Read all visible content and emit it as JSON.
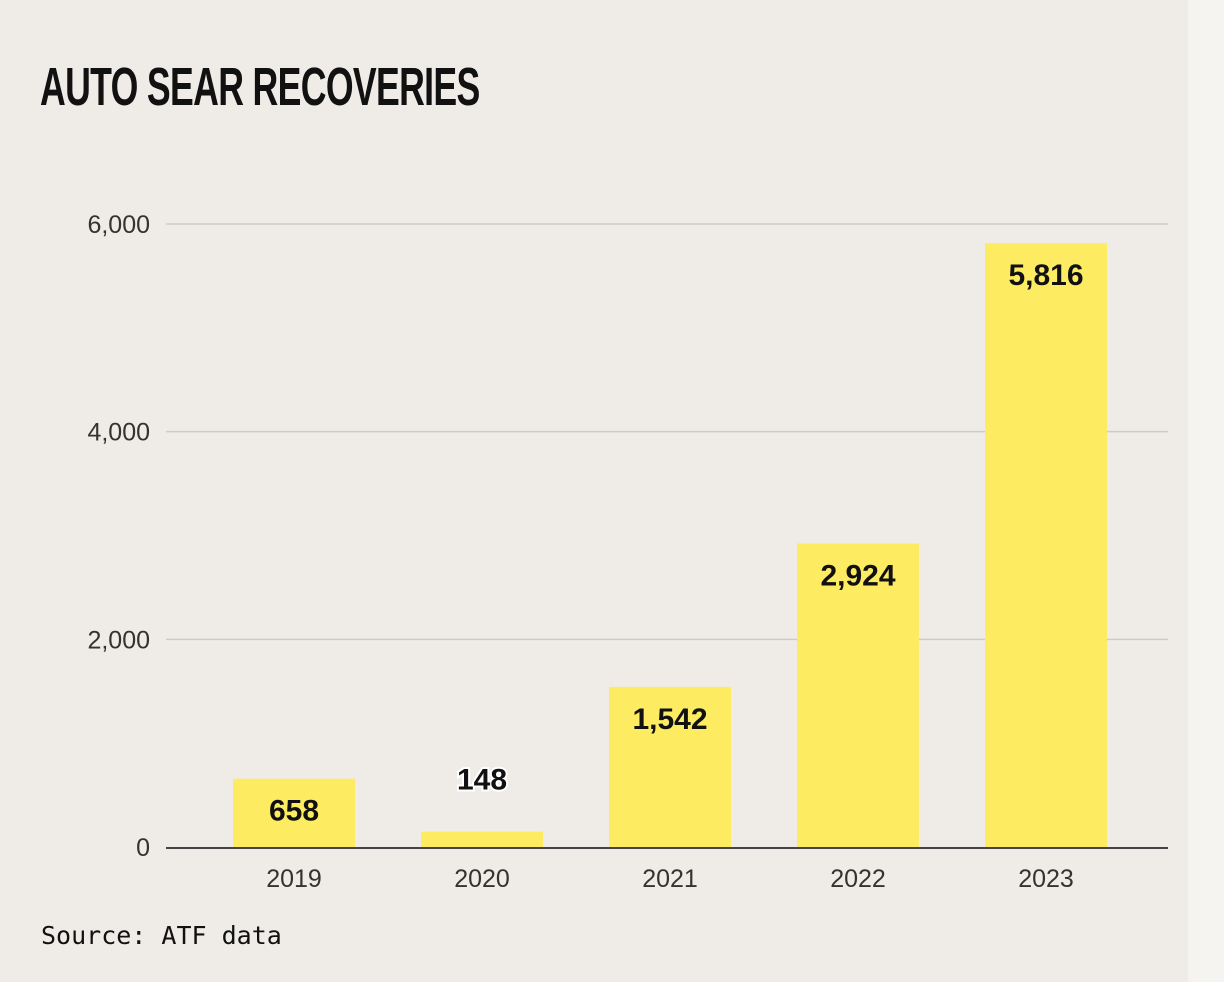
{
  "chart_data": {
    "type": "bar",
    "title": "AUTO SEAR RECOVERIES",
    "categories": [
      "2019",
      "2020",
      "2021",
      "2022",
      "2023"
    ],
    "values": [
      658,
      148,
      1542,
      2924,
      5816
    ],
    "data_labels": [
      "658",
      "148",
      "1,542",
      "2,924",
      "5,816"
    ],
    "yticks": [
      0,
      2000,
      4000,
      6000
    ],
    "ytick_labels": [
      "0",
      "2,000",
      "4,000",
      "6,000"
    ],
    "ylim": [
      0,
      6000
    ],
    "xlabel": "",
    "ylabel": "",
    "grid": true,
    "bar_color": "#fdec62",
    "source": "Source: ATF data"
  }
}
